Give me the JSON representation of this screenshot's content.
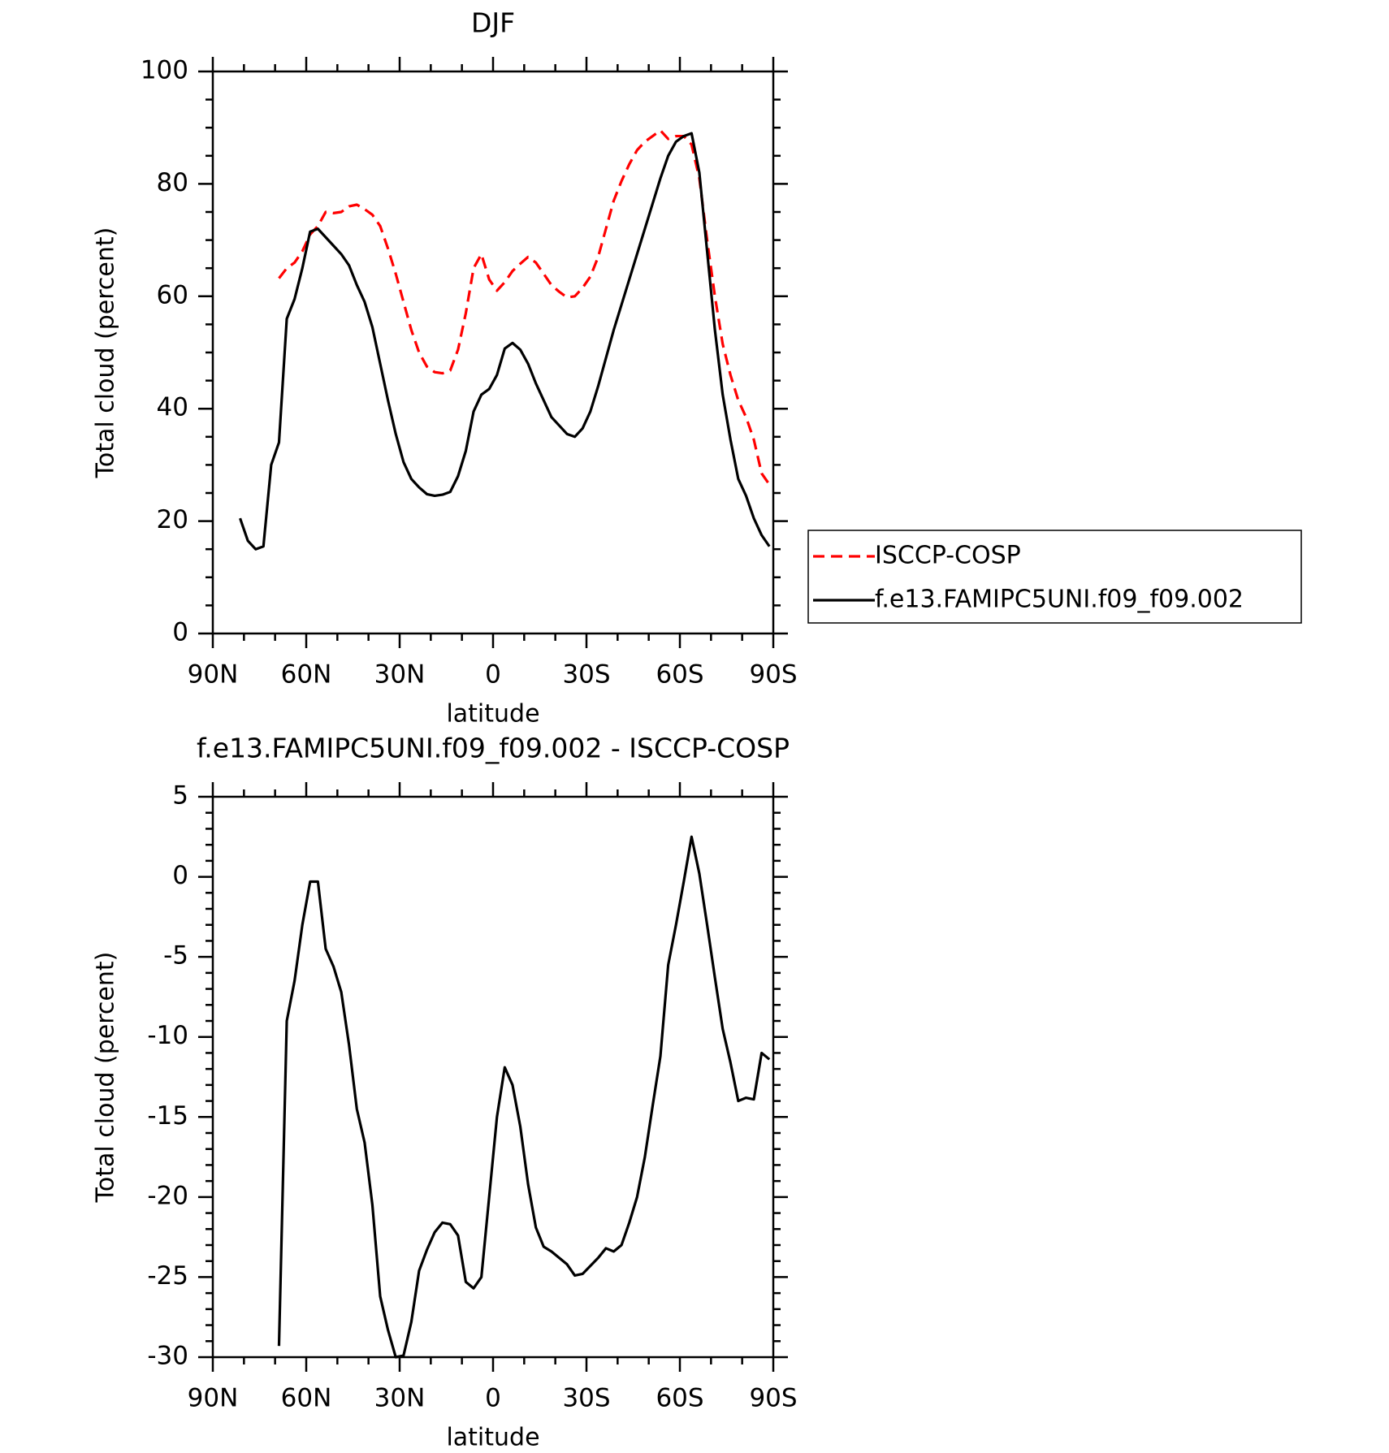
{
  "chart_data": [
    {
      "type": "line",
      "title": "DJF",
      "xlabel": "latitude",
      "ylabel": "Total cloud (percent)",
      "x": [
        81.25,
        78.75,
        76.25,
        73.75,
        71.25,
        68.75,
        66.25,
        63.75,
        61.25,
        58.75,
        56.25,
        53.75,
        51.25,
        48.75,
        46.25,
        43.75,
        41.25,
        38.75,
        36.25,
        33.75,
        31.25,
        28.75,
        26.25,
        23.75,
        21.25,
        18.75,
        16.25,
        13.75,
        11.25,
        8.75,
        6.25,
        3.75,
        1.25,
        -1.25,
        -3.75,
        -6.25,
        -8.75,
        -11.25,
        -13.75,
        -16.25,
        -18.75,
        -21.25,
        -23.75,
        -26.25,
        -28.75,
        -31.25,
        -33.75,
        -36.25,
        -38.75,
        -41.25,
        -43.75,
        -46.25,
        -48.75,
        -51.25,
        -53.75,
        -56.25,
        -58.75,
        -61.25,
        -63.75,
        -66.25,
        -68.75,
        -71.25,
        -73.75,
        -76.25,
        -78.75,
        -81.25,
        -83.75,
        -86.25,
        -88.75
      ],
      "series": [
        {
          "name": "ISCCP-COSP",
          "color": "#ff0000",
          "dashed": true,
          "values": [
            null,
            null,
            null,
            null,
            null,
            63.2,
            65,
            66,
            68,
            71,
            72.5,
            75,
            74.8,
            75,
            76,
            76.3,
            75.5,
            74.5,
            72.5,
            68.5,
            64,
            59,
            54,
            50,
            47.5,
            46.5,
            46.3,
            46.8,
            50.5,
            57,
            65,
            67.5,
            63,
            61,
            62.5,
            64.5,
            65.8,
            67,
            66,
            64,
            62,
            60.8,
            59.8,
            60,
            61.5,
            63.5,
            67,
            72,
            77,
            80.5,
            83.5,
            86,
            87.5,
            88.5,
            89.5,
            88,
            88.5,
            88.5,
            87,
            81,
            70,
            60,
            51.5,
            46,
            41.5,
            38.5,
            34.5,
            28.5,
            26.5
          ]
        },
        {
          "name": "f.e13.FAMIPC5UNI.f09_f09.002",
          "color": "#000000",
          "dashed": false,
          "values": [
            20.5,
            16.5,
            15,
            15.5,
            30,
            34,
            56,
            59.5,
            65,
            71.5,
            72,
            70.5,
            69,
            67.5,
            65.5,
            62,
            59,
            54.5,
            48,
            41.5,
            35.5,
            30.5,
            27.5,
            26,
            24.8,
            24.5,
            24.7,
            25.2,
            28,
            32.5,
            39.5,
            42.5,
            43.5,
            46,
            50.7,
            51.7,
            50.5,
            48,
            44.5,
            41.5,
            38.5,
            37,
            35.5,
            35,
            36.5,
            39.5,
            44,
            49,
            54,
            58.5,
            63,
            67.5,
            72,
            76.5,
            81,
            85,
            87.5,
            88.5,
            89,
            82,
            68,
            54,
            42.5,
            34.5,
            27.5,
            24.5,
            20.5,
            17.5,
            15.5
          ]
        }
      ],
      "xlim": [
        90,
        -90
      ],
      "xticks": [
        {
          "value": 90,
          "label": "90N"
        },
        {
          "value": 60,
          "label": "60N"
        },
        {
          "value": 30,
          "label": "30N"
        },
        0,
        {
          "value": -30,
          "label": "30S"
        },
        {
          "value": -60,
          "label": "60S"
        },
        {
          "value": -90,
          "label": "90S"
        }
      ],
      "ylim": [
        0,
        100
      ],
      "yticks": [
        0,
        20,
        40,
        60,
        80,
        100
      ],
      "legend": "right"
    },
    {
      "type": "line",
      "title": "f.e13.FAMIPC5UNI.f09_f09.002 - ISCCP-COSP",
      "xlabel": "latitude",
      "ylabel": "Total cloud (percent)",
      "x": [
        81.25,
        78.75,
        76.25,
        73.75,
        71.25,
        68.75,
        66.25,
        63.75,
        61.25,
        58.75,
        56.25,
        53.75,
        51.25,
        48.75,
        46.25,
        43.75,
        41.25,
        38.75,
        36.25,
        33.75,
        31.25,
        28.75,
        26.25,
        23.75,
        21.25,
        18.75,
        16.25,
        13.75,
        11.25,
        8.75,
        6.25,
        3.75,
        1.25,
        -1.25,
        -3.75,
        -6.25,
        -8.75,
        -11.25,
        -13.75,
        -16.25,
        -18.75,
        -21.25,
        -23.75,
        -26.25,
        -28.75,
        -31.25,
        -33.75,
        -36.25,
        -38.75,
        -41.25,
        -43.75,
        -46.25,
        -48.75,
        -51.25,
        -53.75,
        -56.25,
        -58.75,
        -61.25,
        -63.75,
        -66.25,
        -68.75,
        -71.25,
        -73.75,
        -76.25,
        -78.75,
        -81.25,
        -83.75,
        -86.25,
        -88.75
      ],
      "series": [
        {
          "color": "#000000",
          "dashed": false,
          "values": [
            null,
            null,
            null,
            null,
            null,
            -29.3,
            -9,
            -6.5,
            -3,
            -0.3,
            -0.3,
            -4.5,
            -5.6,
            -7.2,
            -10.5,
            -14.5,
            -16.6,
            -20.5,
            -26.2,
            -28.3,
            -30,
            -29.9,
            -27.8,
            -24.6,
            -23.3,
            -22.2,
            -21.6,
            -21.7,
            -22.4,
            -25.3,
            -25.7,
            -25,
            -20,
            -15,
            -11.9,
            -13,
            -15.6,
            -19.2,
            -21.9,
            -23.1,
            -23.4,
            -23.8,
            -24.2,
            -24.9,
            -24.8,
            -24.3,
            -23.8,
            -23.2,
            -23.4,
            -23,
            -21.6,
            -20,
            -17.5,
            -14.3,
            -11.2,
            -5.5,
            -3,
            -0.3,
            2.5,
            0.2,
            -3,
            -6.3,
            -9.5,
            -11.6,
            -14,
            -13.8,
            -13.9,
            -11,
            -11.4
          ]
        }
      ],
      "xlim": [
        90,
        -90
      ],
      "xticks": [
        {
          "value": 90,
          "label": "90N"
        },
        {
          "value": 60,
          "label": "60N"
        },
        {
          "value": 30,
          "label": "30N"
        },
        0,
        {
          "value": -30,
          "label": "30S"
        },
        {
          "value": -60,
          "label": "60S"
        },
        {
          "value": -90,
          "label": "90S"
        }
      ],
      "ylim": [
        -30,
        5
      ],
      "yticks": [
        -30,
        -25,
        -20,
        -15,
        -10,
        -5,
        0,
        5
      ]
    }
  ]
}
